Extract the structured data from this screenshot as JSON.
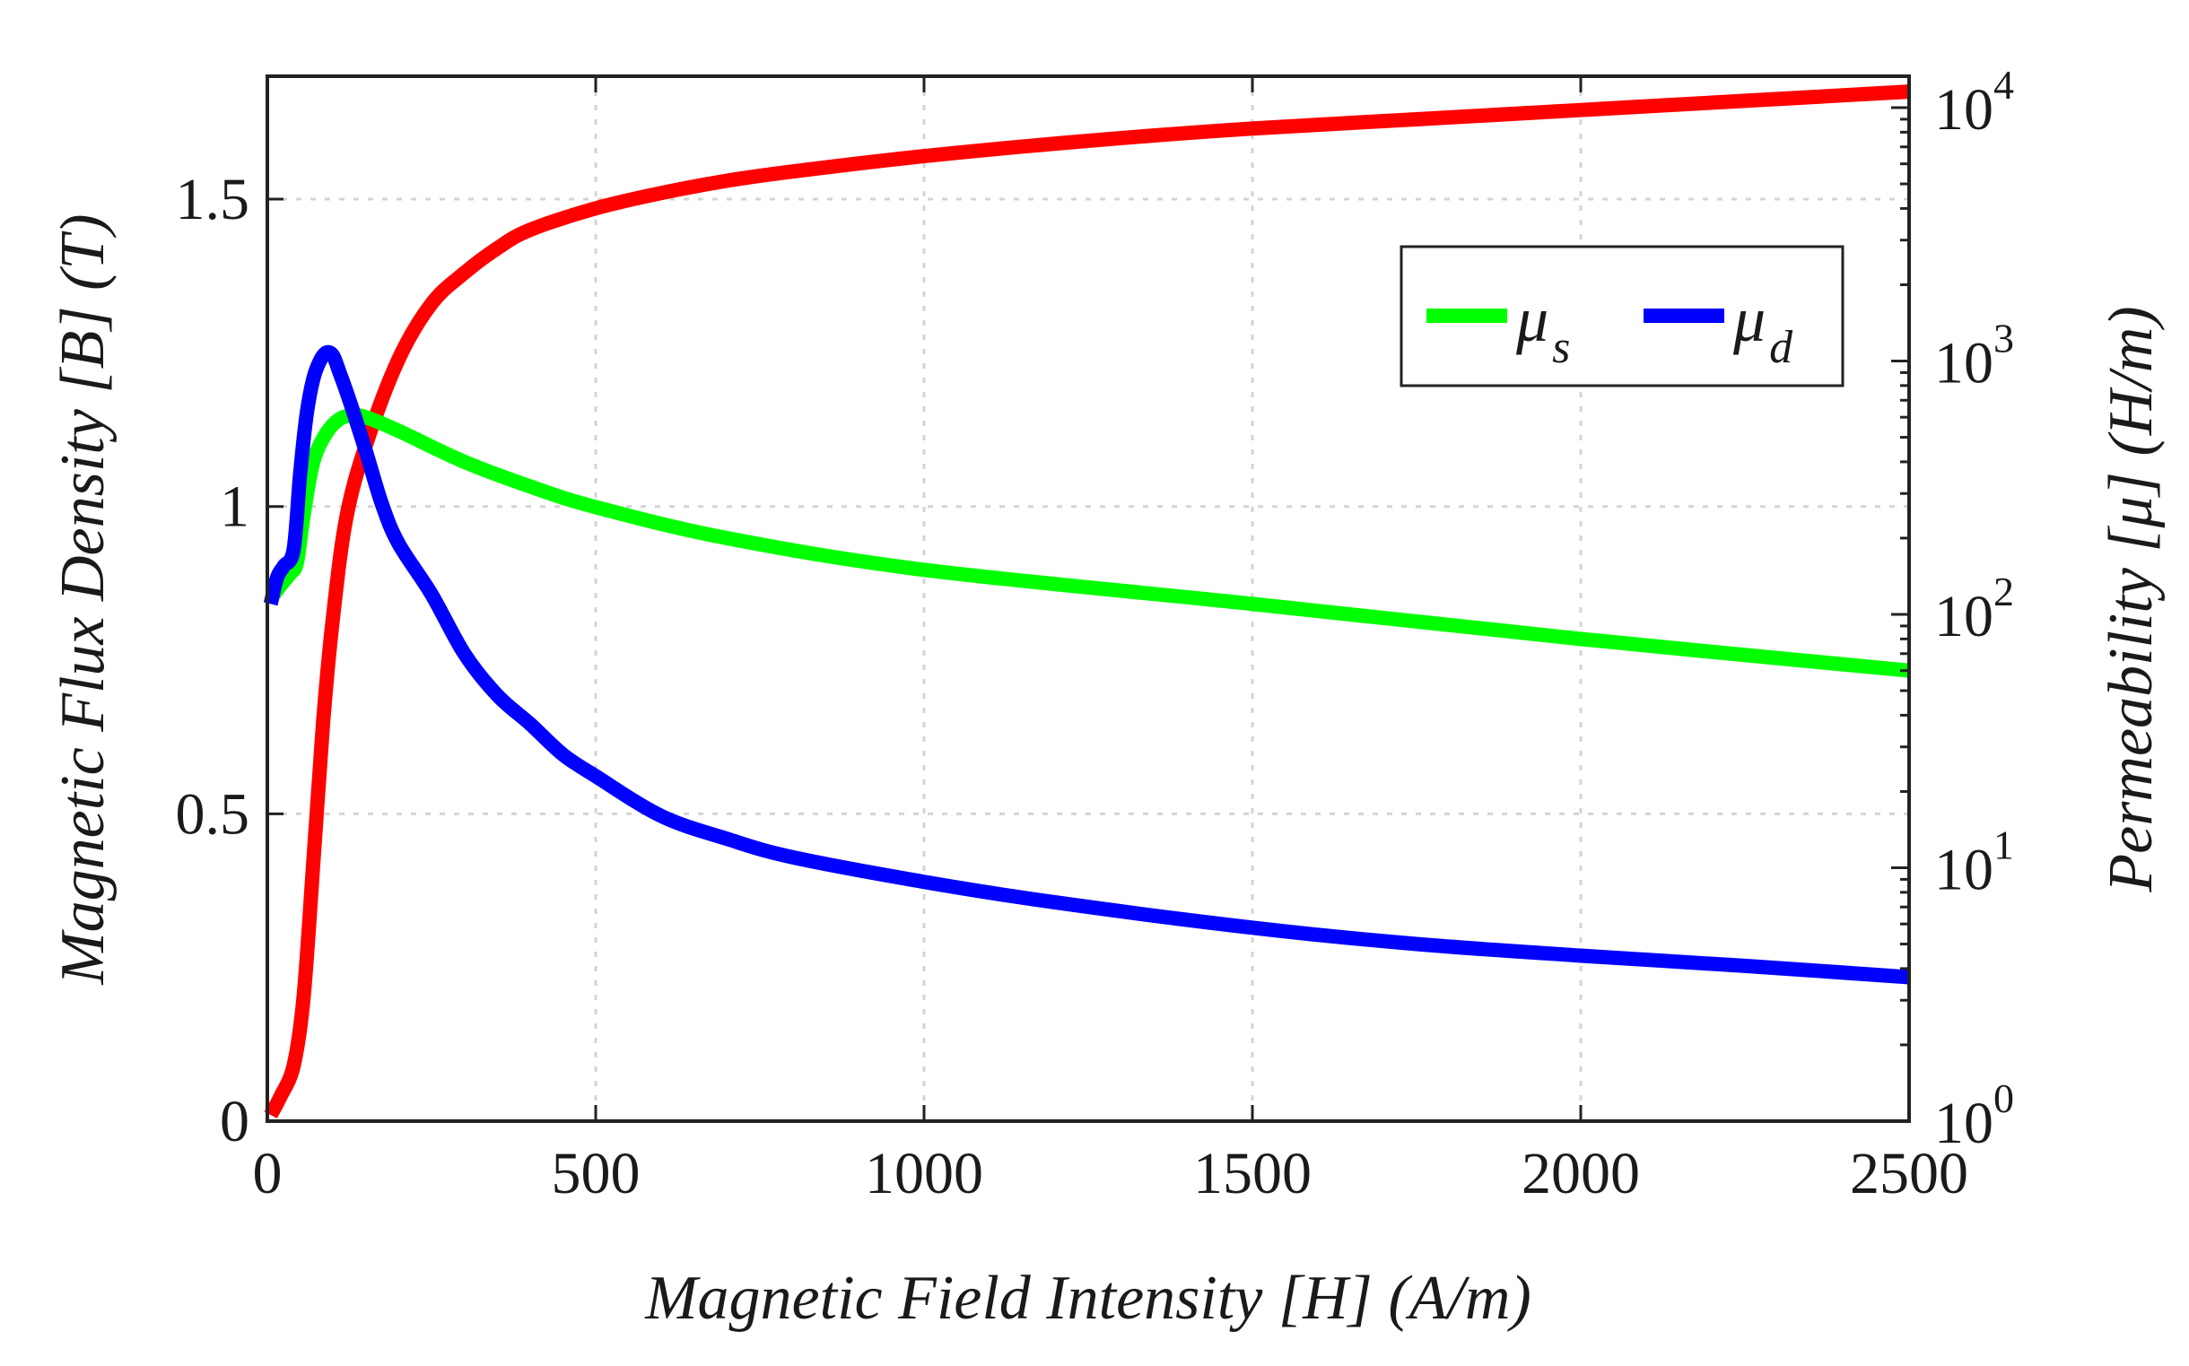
{
  "chart_data": {
    "type": "line",
    "title": "",
    "xlabel": "Magnetic Field Intensity [H] (A/m)",
    "ylabel_left": "Magnetic Flux Density [B] (T)",
    "ylabel_right": "Permeability [μ] (H/m)",
    "xlim": [
      0,
      2500
    ],
    "ylim_left": [
      0,
      1.7
    ],
    "ylim_right": [
      1,
      10000
    ],
    "y_right_scale": "log",
    "grid": true,
    "legend_position": "top-right",
    "x_ticks": [
      "0",
      "500",
      "1000",
      "1500",
      "2000",
      "2500"
    ],
    "x_tick_values": [
      0,
      500,
      1000,
      1500,
      2000,
      2500
    ],
    "y_left_ticks": [
      "0",
      "0.5",
      "1",
      "1.5"
    ],
    "y_left_tick_values": [
      0,
      0.5,
      1,
      1.5
    ],
    "y_right_ticks": [
      {
        "base": "10",
        "exp": "0",
        "value": 1
      },
      {
        "base": "10",
        "exp": "1",
        "value": 10
      },
      {
        "base": "10",
        "exp": "2",
        "value": 100
      },
      {
        "base": "10",
        "exp": "3",
        "value": 1000
      },
      {
        "base": "10",
        "exp": "4",
        "value": 10000
      }
    ],
    "legend": [
      {
        "symbol": "μ",
        "sub": "s",
        "color": "#00ff00"
      },
      {
        "symbol": "μ",
        "sub": "d",
        "color": "#0000ff"
      }
    ],
    "series": [
      {
        "name": "B",
        "axis": "left",
        "color": "#ff0000",
        "x": [
          5,
          20,
          40,
          55,
          70,
          85,
          100,
          120,
          150,
          200,
          250,
          300,
          350,
          400,
          500,
          600,
          700,
          800,
          1000,
          1250,
          1500,
          1750,
          2000,
          2250,
          2500
        ],
        "values": [
          0.01,
          0.04,
          0.09,
          0.2,
          0.42,
          0.65,
          0.82,
          0.98,
          1.1,
          1.24,
          1.33,
          1.38,
          1.42,
          1.45,
          1.485,
          1.51,
          1.53,
          1.545,
          1.57,
          1.595,
          1.615,
          1.63,
          1.645,
          1.66,
          1.675
        ]
      },
      {
        "name": "μs",
        "axis": "right",
        "color": "#00ff00",
        "x": [
          5,
          20,
          35,
          45,
          55,
          70,
          90,
          110,
          130,
          150,
          200,
          300,
          400,
          500,
          700,
          1000,
          1500,
          2000,
          2500
        ],
        "values": [
          115,
          130,
          145,
          160,
          245,
          400,
          520,
          590,
          610,
          600,
          530,
          400,
          320,
          265,
          200,
          150,
          110,
          80,
          60
        ]
      },
      {
        "name": "μd",
        "axis": "right",
        "color": "#0000ff",
        "x": [
          5,
          15,
          25,
          40,
          50,
          60,
          70,
          80,
          90,
          100,
          110,
          125,
          150,
          175,
          200,
          250,
          300,
          350,
          400,
          450,
          500,
          600,
          700,
          800,
          1000,
          1200,
          1500,
          1750,
          2000,
          2250,
          2500
        ],
        "values": [
          110,
          140,
          155,
          180,
          360,
          620,
          850,
          1000,
          1080,
          1050,
          900,
          700,
          440,
          270,
          190,
          120,
          70,
          48,
          37,
          28,
          23,
          16,
          13,
          11,
          8.8,
          7.3,
          5.8,
          5.0,
          4.5,
          4.1,
          3.7
        ]
      }
    ]
  }
}
